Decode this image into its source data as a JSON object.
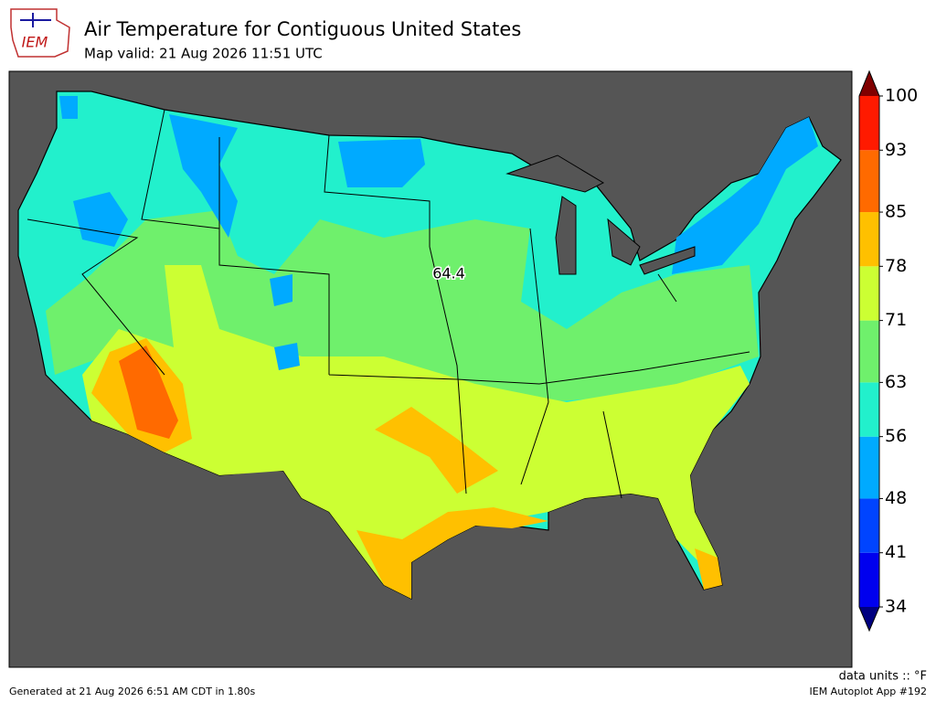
{
  "header": {
    "logo": "IEM",
    "title": "Air Temperature for Contiguous United States",
    "subtitle": "Map valid: 21 Aug 2026 11:51 UTC"
  },
  "map": {
    "annotation": 64.4
  },
  "colorbar": {
    "ticks": [
      34,
      41,
      48,
      56,
      63,
      71,
      78,
      85,
      93,
      100
    ],
    "colors": [
      "#0000ee",
      "#0044ff",
      "#00aaff",
      "#22f0cc",
      "#6ff06c",
      "#ccff33",
      "#ffc000",
      "#ff6a00",
      "#ff1a00"
    ],
    "under_color": "#000080",
    "over_color": "#800000"
  },
  "footer": {
    "units": "data units :: °F",
    "generated": "Generated at 21 Aug 2026 6:51 AM CDT in 1.80s",
    "app": "IEM Autoplot App #192"
  }
}
